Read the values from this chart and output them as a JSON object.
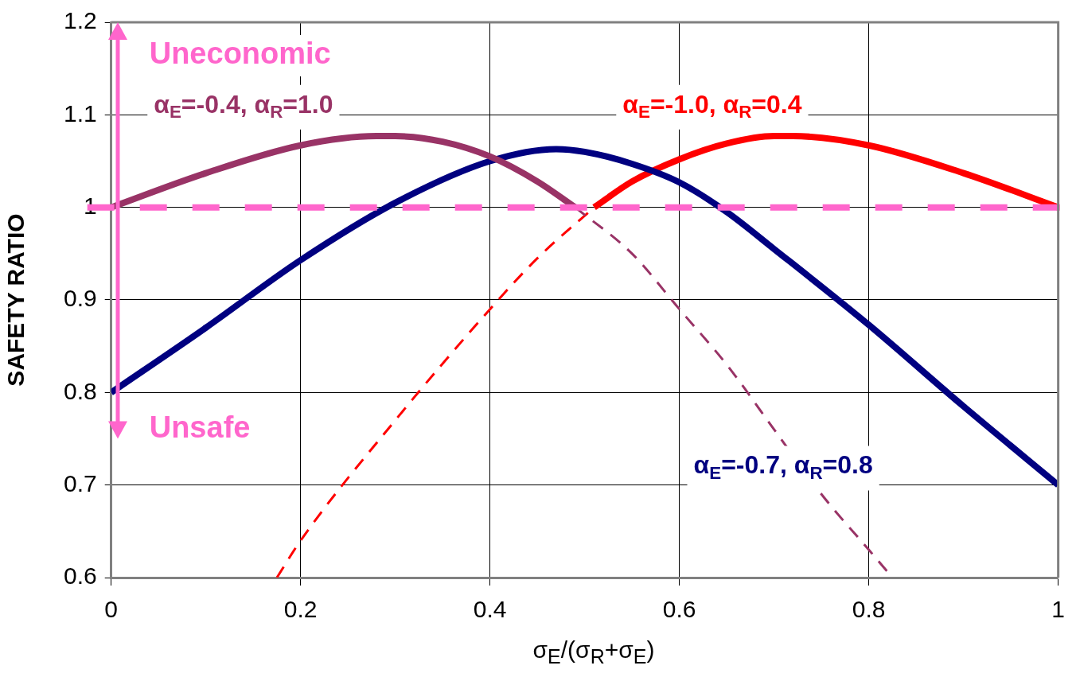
{
  "chart_data": {
    "type": "line",
    "xlabel": "σ$_{E}$/(σ$_{R}$+σ$_{E}$)",
    "ylabel": "SAFETY RATIO",
    "annotations": [
      "Uneconomic",
      "Unsafe"
    ],
    "xlim": [
      0,
      1
    ],
    "ylim": [
      0.6,
      1.2
    ],
    "xticks": [
      0,
      0.2,
      0.4,
      0.6,
      0.8,
      1
    ],
    "yticks": [
      0.6,
      0.7,
      0.8,
      0.9,
      1,
      1.1,
      1.2
    ],
    "grid": true,
    "marker": "none",
    "series": [
      {
        "name": "α$_{E}$=-0.4, α$_{R}$=1.0",
        "color": "#993366",
        "line_style": "solid",
        "x": [
          0,
          0.1,
          0.2,
          0.28,
          0.3,
          0.35,
          0.4,
          0.45,
          0.49
        ],
        "values": [
          1.0,
          1.037,
          1.067,
          1.077,
          1.077,
          1.071,
          1.055,
          1.028,
          1.0
        ]
      },
      {
        "color": "#993366",
        "line_style": "dashed",
        "x": [
          0.49,
          0.55,
          0.6,
          0.65,
          0.7,
          0.75,
          0.8,
          0.825
        ],
        "values": [
          1.0,
          0.95,
          0.89,
          0.83,
          0.76,
          0.69,
          0.63,
          0.6
        ]
      },
      {
        "name": "α$_{E}$=-0.7, α$_{R}$=0.8",
        "color": "#000080",
        "line_style": "solid",
        "x": [
          0,
          0.1,
          0.2,
          0.3,
          0.4,
          0.47,
          0.5,
          0.55,
          0.6,
          0.65,
          0.7,
          0.8,
          0.9,
          1.0
        ],
        "values": [
          0.8,
          0.87,
          0.943,
          1.005,
          1.05,
          1.063,
          1.06,
          1.047,
          1.027,
          0.995,
          0.955,
          0.873,
          0.785,
          0.7
        ]
      },
      {
        "color": "#ff0000",
        "line_style": "dashed",
        "x": [
          0.175,
          0.2,
          0.3,
          0.4,
          0.45,
          0.51
        ],
        "values": [
          0.6,
          0.64,
          0.77,
          0.89,
          0.945,
          1.0
        ]
      },
      {
        "name": "α$_{E}$=-1.0, α$_{R}$=0.4",
        "color": "#ff0000",
        "line_style": "solid",
        "x": [
          0.51,
          0.55,
          0.6,
          0.65,
          0.7,
          0.72,
          0.8,
          0.9,
          1.0
        ],
        "values": [
          1.0,
          1.028,
          1.052,
          1.069,
          1.077,
          1.077,
          1.067,
          1.037,
          1.0
        ]
      }
    ],
    "ref_lines": [
      {
        "axis": "y",
        "value": 1,
        "color": "#ff66cc",
        "line_style": "dashed"
      }
    ]
  }
}
